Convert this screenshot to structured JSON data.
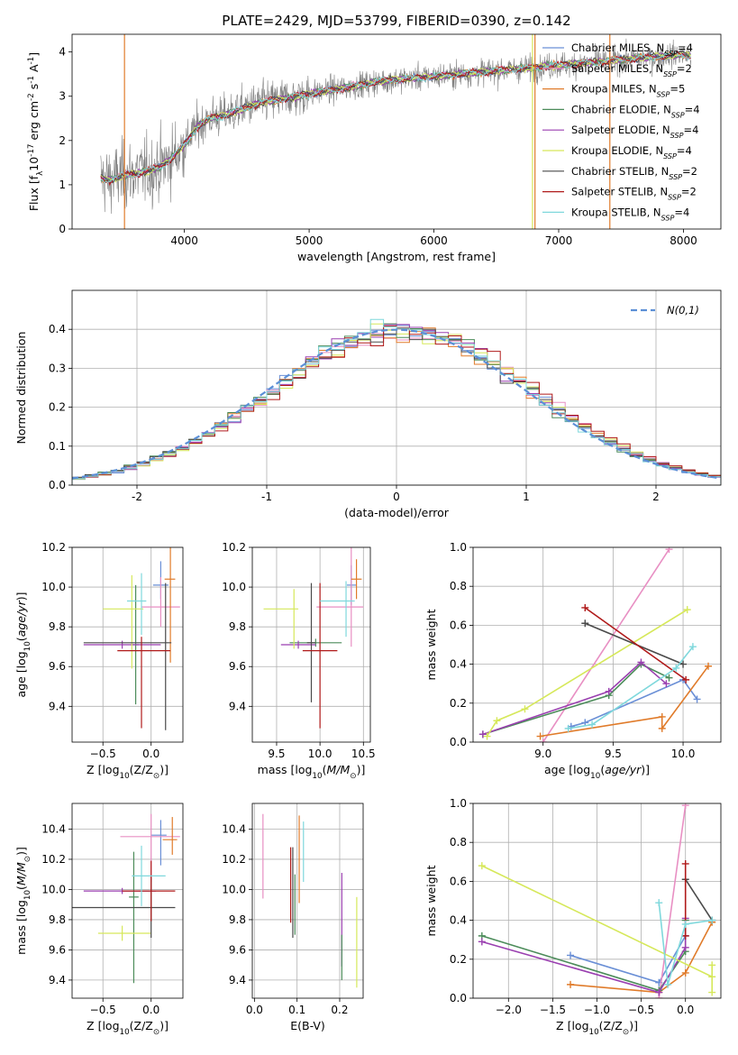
{
  "colors": {
    "chabrier_miles": "#6a8fd6",
    "salpeter_miles": "#e88fc3",
    "kroupa_miles": "#e07b2a",
    "chabrier_elodie": "#4c8c5a",
    "salpeter_elodie": "#9a3fb0",
    "kroupa_elodie": "#d6e85a",
    "chabrier_stelib": "#4a4a4a",
    "salpeter_stelib": "#b01a1a",
    "kroupa_stelib": "#7fd8dc",
    "data": "#808080",
    "normal": "#5b8fd6"
  },
  "chart_data": [
    {
      "id": "spectrum",
      "type": "line",
      "title": "PLATE=2429, MJD=53799, FIBERID=0390, z=0.142",
      "xlabel": "wavelength [Angstrom, rest frame]",
      "ylabel": "Flux [f$_\\lambda$10$^{-17}$ erg cm$^{-2}$ s$^{-1}$ A$^{-1}$]",
      "xlim": [
        3100,
        8300
      ],
      "ylim": [
        0,
        4.4
      ],
      "xticks": [
        4000,
        5000,
        6000,
        7000,
        8000
      ],
      "yticks": [
        0,
        1,
        2,
        3,
        4
      ],
      "grid": false,
      "legend": [
        {
          "label": "Chabrier MILES, N$_{SSP}$=4",
          "color": "chabrier_miles"
        },
        {
          "label": "Salpeter MILES, N$_{SSP}$=2",
          "color": "salpeter_miles"
        },
        {
          "label": "Kroupa MILES, N$_{SSP}$=5",
          "color": "kroupa_miles"
        },
        {
          "label": "Chabrier ELODIE, N$_{SSP}$=4",
          "color": "chabrier_elodie"
        },
        {
          "label": "Salpeter ELODIE, N$_{SSP}$=4",
          "color": "salpeter_elodie"
        },
        {
          "label": "Kroupa ELODIE, N$_{SSP}$=4",
          "color": "kroupa_elodie"
        },
        {
          "label": "Chabrier STELIB, N$_{SSP}$=2",
          "color": "chabrier_stelib"
        },
        {
          "label": "Salpeter STELIB, N$_{SSP}$=2",
          "color": "salpeter_stelib"
        },
        {
          "label": "Kroupa STELIB, N$_{SSP}$=4",
          "color": "kroupa_stelib"
        }
      ],
      "legend_position": "upper-right",
      "model_wavelength": [
        3330,
        3400,
        3500,
        3600,
        3700,
        3800,
        3900,
        4000,
        4100,
        4200,
        4300,
        4400,
        4500,
        4600,
        4700,
        4800,
        4900,
        5000,
        5200,
        5400,
        5600,
        5800,
        6000,
        6200,
        6400,
        6600,
        6800,
        7000,
        7200,
        7400,
        7600,
        7800,
        8000,
        8060
      ],
      "model_flux": [
        1.15,
        1.1,
        1.2,
        1.25,
        1.3,
        1.4,
        1.6,
        1.9,
        2.3,
        2.5,
        2.55,
        2.65,
        2.75,
        2.85,
        2.9,
        2.95,
        3.0,
        3.05,
        3.15,
        3.25,
        3.35,
        3.4,
        3.45,
        3.5,
        3.55,
        3.6,
        3.65,
        3.7,
        3.75,
        3.8,
        3.85,
        3.9,
        3.95,
        3.9
      ],
      "dips": [
        {
          "x": 3520,
          "color": "kroupa_miles"
        },
        {
          "x": 6790,
          "color": "kroupa_elodie"
        },
        {
          "x": 6810,
          "color": "kroupa_miles"
        },
        {
          "x": 7410,
          "color": "kroupa_miles"
        }
      ]
    },
    {
      "id": "residuals",
      "type": "line",
      "xlabel": "(data-model)/error",
      "ylabel": "Normed distribution",
      "xlim": [
        -2.5,
        2.5
      ],
      "ylim": [
        0,
        0.5
      ],
      "xticks": [
        -2,
        -1,
        0,
        1,
        2
      ],
      "yticks": [
        0.0,
        0.1,
        0.2,
        0.3,
        0.4
      ],
      "grid": true,
      "bin_width": 0.1,
      "legend": [
        {
          "label": "$\\mathcal{N}(0,1)$",
          "color": "normal",
          "style": "dashed"
        }
      ],
      "legend_position": "upper-right"
    },
    {
      "id": "age-vs-Z",
      "type": "scatter",
      "xlabel": "Z [log$_{10}$(Z/Z$_\\odot$)]",
      "ylabel": "age  [log$_{10}$($age/yr$)]",
      "xlim": [
        -0.82,
        0.33
      ],
      "ylim": [
        9.22,
        10.2
      ],
      "xticks": [
        -0.5,
        0.0
      ],
      "yticks": [
        9.4,
        9.6,
        9.8,
        10.0,
        10.2
      ],
      "grid": true,
      "points": [
        {
          "color": "chabrier_miles",
          "x": 0.1,
          "xerr": [
            0.08,
            0.08
          ],
          "y": 10.01,
          "yerr": [
            0.07,
            0.12
          ]
        },
        {
          "color": "salpeter_miles",
          "x": 0.1,
          "xerr": [
            0.2,
            0.2
          ],
          "y": 9.9,
          "yerr": [
            0.1,
            0.15
          ]
        },
        {
          "color": "kroupa_miles",
          "x": 0.2,
          "xerr": [
            0.06,
            0.05
          ],
          "y": 10.04,
          "yerr": [
            0.42,
            0.16
          ]
        },
        {
          "color": "chabrier_elodie",
          "x": -0.16,
          "xerr": [
            0.05,
            0.03
          ],
          "y": 9.71,
          "yerr": [
            0.3,
            0.3
          ]
        },
        {
          "color": "salpeter_elodie",
          "x": -0.3,
          "xerr": [
            0.4,
            0.4
          ],
          "y": 9.71,
          "yerr": [
            0.02,
            0.02
          ]
        },
        {
          "color": "kroupa_elodie",
          "x": -0.2,
          "xerr": [
            0.3,
            0.12
          ],
          "y": 9.89,
          "yerr": [
            0.3,
            0.17
          ]
        },
        {
          "color": "chabrier_stelib",
          "x": 0.15,
          "xerr": [
            0.85,
            0.06
          ],
          "y": 9.72,
          "yerr": [
            0.44,
            0.3
          ]
        },
        {
          "color": "salpeter_stelib",
          "x": -0.1,
          "xerr": [
            0.25,
            0.3
          ],
          "y": 9.68,
          "yerr": [
            0.39,
            0.07
          ]
        },
        {
          "color": "kroupa_stelib",
          "x": -0.1,
          "xerr": [
            0.15,
            0.05
          ],
          "y": 9.93,
          "yerr": [
            0.17,
            0.14
          ]
        }
      ]
    },
    {
      "id": "age-vs-mass",
      "type": "scatter",
      "xlabel": "mass [log$_{10}$($M/M_\\odot$)]",
      "ylabel": "",
      "xlim": [
        9.22,
        10.58
      ],
      "ylim": [
        9.22,
        10.2
      ],
      "xticks": [
        9.5,
        10.0,
        10.5
      ],
      "yticks": [
        9.4,
        9.6,
        9.8,
        10.0,
        10.2
      ],
      "grid": true,
      "points": [
        {
          "color": "chabrier_miles",
          "x": 10.36,
          "xerr": [
            0.05,
            0.06
          ],
          "y": 10.01,
          "yerr": [
            0.1,
            0.1
          ]
        },
        {
          "color": "salpeter_miles",
          "x": 10.36,
          "xerr": [
            0.4,
            0.14
          ],
          "y": 9.9,
          "yerr": [
            0.2,
            0.3
          ]
        },
        {
          "color": "kroupa_miles",
          "x": 10.42,
          "xerr": [
            0.06,
            0.06
          ],
          "y": 10.04,
          "yerr": [
            0.1,
            0.1
          ]
        },
        {
          "color": "chabrier_elodie",
          "x": 9.95,
          "xerr": [
            0.3,
            0.3
          ],
          "y": 9.72,
          "yerr": [
            0.02,
            0.02
          ]
        },
        {
          "color": "salpeter_elodie",
          "x": 9.75,
          "xerr": [
            0.2,
            0.2
          ],
          "y": 9.71,
          "yerr": [
            0.02,
            0.02
          ]
        },
        {
          "color": "kroupa_elodie",
          "x": 9.7,
          "xerr": [
            0.35,
            0.05
          ],
          "y": 9.89,
          "yerr": [
            0.2,
            0.1
          ]
        },
        {
          "color": "chabrier_stelib",
          "x": 9.9,
          "xerr": [
            0.05,
            0.05
          ],
          "y": 9.72,
          "yerr": [
            0.3,
            0.3
          ]
        },
        {
          "color": "salpeter_stelib",
          "x": 10.0,
          "xerr": [
            0.2,
            0.2
          ],
          "y": 9.68,
          "yerr": [
            0.39,
            0.34
          ]
        },
        {
          "color": "kroupa_stelib",
          "x": 10.3,
          "xerr": [
            0.3,
            0.1
          ],
          "y": 9.93,
          "yerr": [
            0.18,
            0.1
          ]
        }
      ]
    },
    {
      "id": "weight-vs-age",
      "type": "line",
      "xlabel": "age  [log$_{10}$($age/yr$)]",
      "ylabel": "mass weight",
      "xlim": [
        8.5,
        10.27
      ],
      "ylim": [
        0.0,
        1.0
      ],
      "xticks": [
        9.0,
        9.5,
        10.0
      ],
      "yticks": [
        0.0,
        0.2,
        0.4,
        0.6,
        0.8,
        1.0
      ],
      "grid": true,
      "series": [
        {
          "color": "chabrier_miles",
          "x": [
            9.2,
            9.3,
            10.0,
            10.1
          ],
          "y": [
            0.08,
            0.1,
            0.32,
            0.22
          ]
        },
        {
          "color": "salpeter_miles",
          "x": [
            9.0,
            9.9
          ],
          "y": [
            0.0,
            0.99
          ]
        },
        {
          "color": "kroupa_miles",
          "x": [
            8.98,
            9.85,
            9.85,
            10.18
          ],
          "y": [
            0.03,
            0.13,
            0.07,
            0.39
          ]
        },
        {
          "color": "chabrier_elodie",
          "x": [
            8.57,
            9.47,
            9.7,
            9.9
          ],
          "y": [
            0.04,
            0.24,
            0.4,
            0.33
          ]
        },
        {
          "color": "salpeter_elodie",
          "x": [
            8.57,
            9.47,
            9.7,
            9.88
          ],
          "y": [
            0.04,
            0.26,
            0.41,
            0.3
          ]
        },
        {
          "color": "kroupa_elodie",
          "x": [
            8.6,
            8.67,
            8.87,
            10.03
          ],
          "y": [
            0.03,
            0.11,
            0.17,
            0.68
          ]
        },
        {
          "color": "chabrier_stelib",
          "x": [
            9.3,
            10.0
          ],
          "y": [
            0.61,
            0.4
          ]
        },
        {
          "color": "salpeter_stelib",
          "x": [
            9.3,
            10.02
          ],
          "y": [
            0.69,
            0.32
          ]
        },
        {
          "color": "kroupa_stelib",
          "x": [
            9.18,
            9.35,
            9.95,
            10.07
          ],
          "y": [
            0.07,
            0.09,
            0.38,
            0.49
          ]
        }
      ]
    },
    {
      "id": "mass-vs-Z",
      "type": "scatter",
      "xlabel": "Z [log$_{10}$(Z/Z$_\\odot$)]",
      "ylabel": "mass [log$_{10}$($M/M_\\odot$)]",
      "xlim": [
        -0.82,
        0.33
      ],
      "ylim": [
        9.28,
        10.57
      ],
      "xticks": [
        -0.5,
        0.0
      ],
      "yticks": [
        9.4,
        9.6,
        9.8,
        10.0,
        10.2,
        10.4
      ],
      "grid": true,
      "points": [
        {
          "color": "chabrier_miles",
          "x": 0.1,
          "xerr": [
            0.1,
            0.06
          ],
          "y": 10.36,
          "yerr": [
            0.2,
            0.1
          ]
        },
        {
          "color": "salpeter_miles",
          "x": 0.0,
          "xerr": [
            0.32,
            0.3
          ],
          "y": 10.35,
          "yerr": [
            0.3,
            0.15
          ]
        },
        {
          "color": "kroupa_miles",
          "x": 0.22,
          "xerr": [
            0.1,
            0.05
          ],
          "y": 10.33,
          "yerr": [
            0.1,
            0.15
          ]
        },
        {
          "color": "chabrier_elodie",
          "x": -0.18,
          "xerr": [
            0.05,
            0.05
          ],
          "y": 9.95,
          "yerr": [
            0.57,
            0.3
          ]
        },
        {
          "color": "salpeter_elodie",
          "x": -0.3,
          "xerr": [
            0.4,
            0.35
          ],
          "y": 9.99,
          "yerr": [
            0.02,
            0.02
          ]
        },
        {
          "color": "kroupa_elodie",
          "x": -0.3,
          "xerr": [
            0.25,
            0.3
          ],
          "y": 9.71,
          "yerr": [
            0.05,
            0.05
          ]
        },
        {
          "color": "chabrier_stelib",
          "x": 0.0,
          "xerr": [
            0.85,
            0.25
          ],
          "y": 9.88,
          "yerr": [
            0.2,
            0.2
          ]
        },
        {
          "color": "salpeter_stelib",
          "x": 0.0,
          "xerr": [
            0.3,
            0.25
          ],
          "y": 9.99,
          "yerr": [
            0.2,
            0.2
          ]
        },
        {
          "color": "kroupa_stelib",
          "x": -0.1,
          "xerr": [
            0.1,
            0.25
          ],
          "y": 10.09,
          "yerr": [
            0.2,
            0.2
          ]
        }
      ]
    },
    {
      "id": "mass-vs-ebv",
      "type": "scatter",
      "xlabel": "E(B-V)",
      "ylabel": "",
      "xlim": [
        -0.005,
        0.255
      ],
      "ylim": [
        9.28,
        10.57
      ],
      "xticks": [
        0.0,
        0.1,
        0.2
      ],
      "yticks": [
        9.4,
        9.6,
        9.8,
        10.0,
        10.2,
        10.4
      ],
      "grid": true,
      "points": [
        {
          "color": "salpeter_miles",
          "x": 0.02,
          "y": 10.22,
          "yerr": [
            0.28,
            0.28
          ]
        },
        {
          "color": "chabrier_stelib",
          "x": 0.09,
          "y": 9.98,
          "yerr": [
            0.3,
            0.3
          ]
        },
        {
          "color": "salpeter_stelib",
          "x": 0.085,
          "y": 10.03,
          "yerr": [
            0.25,
            0.25
          ]
        },
        {
          "color": "chabrier_elodie",
          "x": 0.095,
          "y": 9.9,
          "yerr": [
            0.2,
            0.2
          ]
        },
        {
          "color": "kroupa_miles",
          "x": 0.105,
          "y": 10.2,
          "yerr": [
            0.29,
            0.29
          ]
        },
        {
          "color": "kroupa_stelib",
          "x": 0.115,
          "y": 10.25,
          "yerr": [
            0.2,
            0.2
          ]
        },
        {
          "color": "salpeter_elodie",
          "x": 0.205,
          "y": 9.8,
          "yerr": [
            0.31,
            0.31
          ]
        },
        {
          "color": "chabrier_elodie",
          "x": 0.205,
          "y": 9.55,
          "yerr": [
            0.15,
            0.15
          ]
        },
        {
          "color": "kroupa_elodie",
          "x": 0.24,
          "y": 9.65,
          "yerr": [
            0.3,
            0.3
          ]
        }
      ]
    },
    {
      "id": "weight-vs-Z",
      "type": "line",
      "xlabel": "Z [log$_{10}$(Z/Z$_\\odot$)]",
      "ylabel": "mass weight",
      "xlim": [
        -2.4,
        0.4
      ],
      "ylim": [
        0.0,
        1.0
      ],
      "xticks": [
        -2.0,
        -1.5,
        -1.0,
        -0.5,
        0.0
      ],
      "yticks": [
        0.0,
        0.2,
        0.4,
        0.6,
        0.8,
        1.0
      ],
      "grid": true,
      "series": [
        {
          "color": "chabrier_miles",
          "x": [
            -1.3,
            -0.3,
            0.0
          ],
          "y": [
            0.22,
            0.08,
            0.32
          ]
        },
        {
          "color": "salpeter_miles",
          "x": [
            -0.3,
            0.0
          ],
          "y": [
            0.0,
            0.99
          ]
        },
        {
          "color": "kroupa_miles",
          "x": [
            -1.3,
            -0.3,
            0.0,
            0.3
          ],
          "y": [
            0.07,
            0.03,
            0.13,
            0.39
          ]
        },
        {
          "color": "chabrier_elodie",
          "x": [
            -2.3,
            -0.3,
            0.0,
            0.0
          ],
          "y": [
            0.32,
            0.04,
            0.24,
            0.4
          ]
        },
        {
          "color": "salpeter_elodie",
          "x": [
            -2.3,
            -0.3,
            0.0,
            0.0
          ],
          "y": [
            0.29,
            0.03,
            0.26,
            0.41
          ]
        },
        {
          "color": "kroupa_elodie",
          "x": [
            -2.3,
            0.3,
            0.3,
            0.3
          ],
          "y": [
            0.68,
            0.11,
            0.17,
            0.03
          ]
        },
        {
          "color": "chabrier_stelib",
          "x": [
            0.0,
            0.3
          ],
          "y": [
            0.61,
            0.4
          ]
        },
        {
          "color": "salpeter_stelib",
          "x": [
            0.0,
            0.0
          ],
          "y": [
            0.69,
            0.32
          ]
        },
        {
          "color": "kroupa_stelib",
          "x": [
            -0.3,
            -0.2,
            0.0,
            0.3
          ],
          "y": [
            0.49,
            0.07,
            0.38,
            0.4
          ]
        }
      ]
    }
  ]
}
